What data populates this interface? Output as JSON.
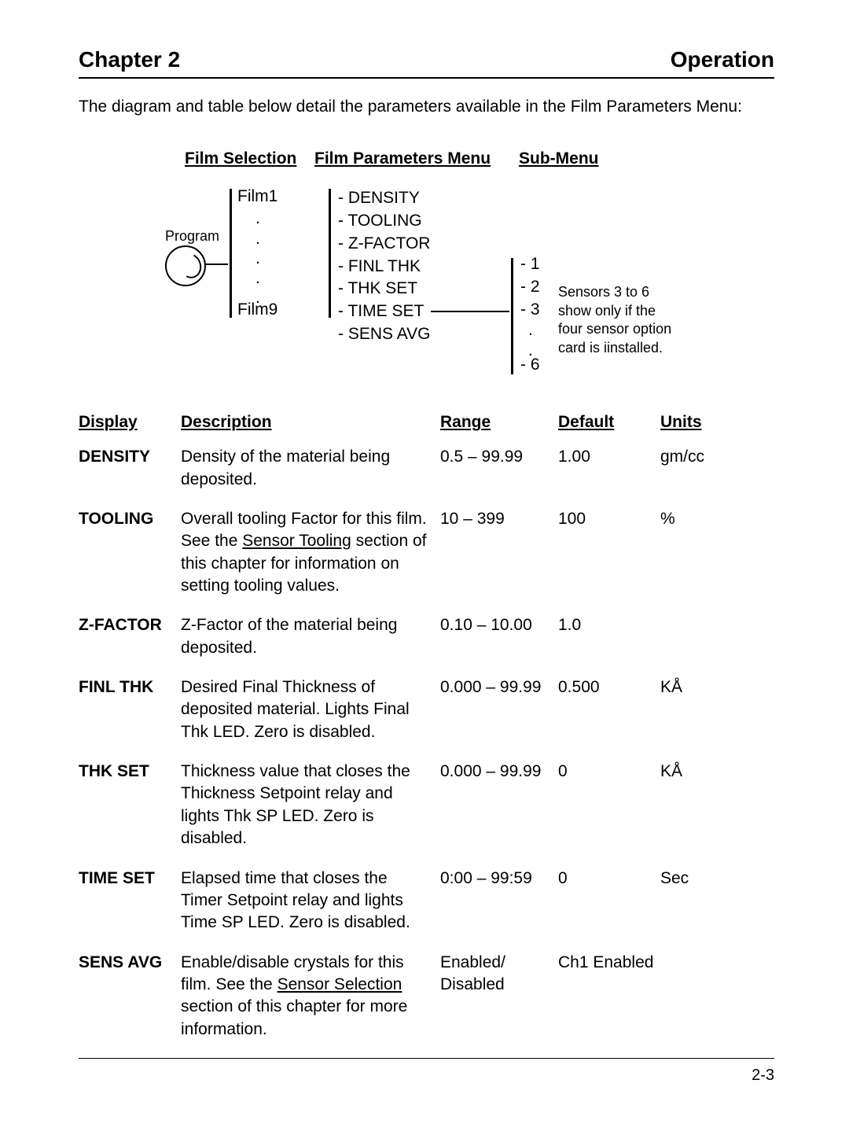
{
  "header": {
    "left": "Chapter 2",
    "right": "Operation"
  },
  "intro": "The diagram and table below detail the parameters available in the Film Parameters Menu:",
  "diagram": {
    "col1": "Film Selection",
    "col2": "Film Parameters Menu",
    "col3": "Sub-Menu",
    "program_label": "Program",
    "film_top": "Film1",
    "film_bot": "Film9",
    "params": [
      "-  DENSITY",
      "-  TOOLING",
      "-  Z-FACTOR",
      "-  FINL THK",
      "-  THK SET",
      "-  TIME SET",
      "-  SENS AVG"
    ],
    "sub_top": [
      "-  1",
      "-  2",
      "-  3"
    ],
    "sub_bot": "-  6",
    "note": "Sensors 3 to 6 show only if the four sensor option card is iinstalled."
  },
  "table": {
    "headers": {
      "c1": "Display",
      "c2": "Description",
      "c3": "Range",
      "c4": "Default",
      "c5": "Units"
    },
    "rows": [
      {
        "c1": "DENSITY",
        "c2": "Density of the material being deposited.",
        "c3": "0.5 – 99.99",
        "c4": "1.00",
        "c5": "gm/cc"
      },
      {
        "c1": "TOOLING",
        "c2_pre": "Overall tooling Factor for this film. See the ",
        "c2_ul": "Sensor Tooling",
        "c2_post": " section of this chapter for information on setting tooling values.",
        "c3": "10 – 399",
        "c4": "100",
        "c5": "%"
      },
      {
        "c1": "Z-FACTOR",
        "c2": "Z-Factor of the material being deposited.",
        "c3": "0.10 – 10.00",
        "c4": "1.0",
        "c5": ""
      },
      {
        "c1": "FINL THK",
        "c2": "Desired Final Thickness of deposited material.  Lights Final Thk LED.   Zero is disabled.",
        "c3": "0.000 – 99.99",
        "c4": "0.500",
        "c5": "KÅ"
      },
      {
        "c1": "THK SET",
        "c2": "Thickness value that closes the Thickness Setpoint relay and lights Thk SP LED.  Zero is disabled.",
        "c3": "0.000 – 99.99",
        "c4": "0",
        "c5": "KÅ"
      },
      {
        "c1": "TIME SET",
        "c2": "Elapsed time that closes the Timer Setpoint relay and lights Time SP LED.  Zero is disabled.",
        "c3": "0:00 – 99:59",
        "c4": "0",
        "c5": "Sec"
      },
      {
        "c1": "SENS AVG",
        "c2_pre": "Enable/disable crystals for this film. See the ",
        "c2_ul": "Sensor Selection",
        "c2_post": " section of this chapter for more information.",
        "c3": "Enabled/ Disabled",
        "c4": "Ch1 Enabled",
        "c5": ""
      }
    ]
  },
  "footer": "2-3"
}
